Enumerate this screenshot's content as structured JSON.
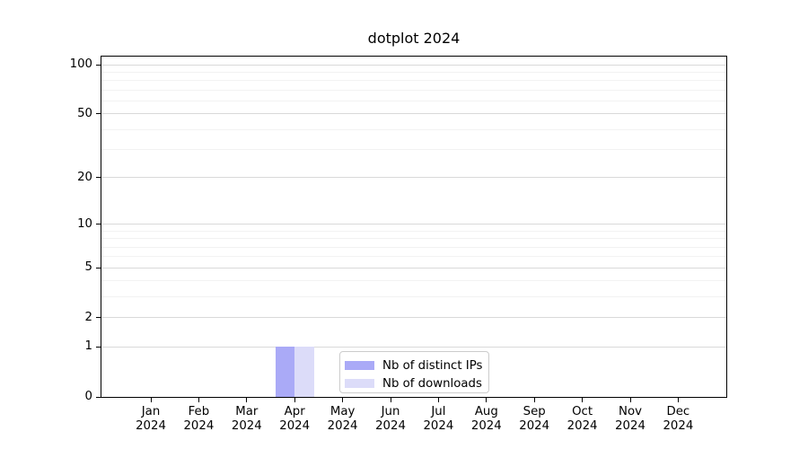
{
  "chart_data": {
    "type": "bar",
    "title": "dotplot 2024",
    "categories": [
      "Jan",
      "Feb",
      "Mar",
      "Apr",
      "May",
      "Jun",
      "Jul",
      "Aug",
      "Sep",
      "Oct",
      "Nov",
      "Dec"
    ],
    "category_sublabel": "2024",
    "series": [
      {
        "name": "Nb of distinct IPs",
        "color": "#aaaaf7",
        "values": [
          0,
          0,
          0,
          1,
          0,
          0,
          0,
          0,
          0,
          0,
          0,
          0
        ]
      },
      {
        "name": "Nb of downloads",
        "color": "#dcdcf9",
        "values": [
          0,
          0,
          0,
          1,
          0,
          0,
          0,
          0,
          0,
          0,
          0,
          0
        ]
      }
    ],
    "xlabel": "",
    "ylabel": "",
    "yscale": "log1p",
    "ylim": [
      0,
      112
    ],
    "yticks": [
      100,
      50,
      20,
      10,
      5,
      2,
      1,
      0
    ],
    "yticks_minor": [
      90,
      80,
      70,
      60,
      40,
      30,
      9,
      8,
      7,
      6,
      4,
      3
    ],
    "grid": {
      "which": "both",
      "major_color": "#d9d9d9",
      "minor_color": "#f2f2f2"
    },
    "legend": {
      "position": "lower center",
      "labels": [
        "Nb of distinct IPs",
        "Nb of downloads"
      ]
    },
    "colors": {
      "axis": "#000000",
      "background": "#ffffff",
      "text": "#000000"
    }
  }
}
